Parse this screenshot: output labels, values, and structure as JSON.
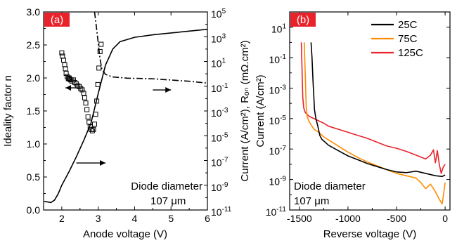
{
  "chart_data": [
    {
      "type": "line",
      "panel_tag": "(a)",
      "xlabel": "Anode voltage (V)",
      "ylabel_left": "Ideality factor n",
      "ylabel_right": "Current (A/cm²), Rₒₙ (mΩ.cm²)",
      "xlim": [
        1.5,
        6
      ],
      "ylim_left": [
        0,
        3
      ],
      "ylim_right_log10": [
        -11,
        5
      ],
      "right_axis_scale": "log",
      "x_ticks": [
        "2",
        "3",
        "4",
        "5",
        "6"
      ],
      "y_left_ticks": [
        "0.0",
        "0.5",
        "1.0",
        "1.5",
        "2.0",
        "2.5",
        "3.0"
      ],
      "y_right_ticks": [
        {
          "base": "10",
          "exp": "5"
        },
        {
          "base": "10",
          "exp": "3"
        },
        {
          "base": "10",
          "exp": "1"
        },
        {
          "base": "10",
          "exp": "-1"
        },
        {
          "base": "10",
          "exp": "-3"
        },
        {
          "base": "10",
          "exp": "-5"
        },
        {
          "base": "10",
          "exp": "-7"
        },
        {
          "base": "10",
          "exp": "-9"
        },
        {
          "base": "10",
          "exp": "-11"
        }
      ],
      "annotation_lines": [
        "Diode diameter",
        "107 μm"
      ],
      "series": [
        {
          "role": "ideality factor n (left axis)",
          "style": "open-square-markers",
          "points": [
            [
              2.0,
              2.38
            ],
            [
              2.02,
              2.33
            ],
            [
              2.05,
              2.27
            ],
            [
              2.08,
              2.2
            ],
            [
              2.1,
              2.14
            ],
            [
              2.12,
              2.07
            ],
            [
              2.15,
              2.02
            ],
            [
              2.18,
              1.99
            ],
            [
              2.2,
              2.0
            ],
            [
              2.22,
              1.98
            ],
            [
              2.25,
              1.97
            ],
            [
              2.28,
              1.95
            ],
            [
              2.32,
              1.97
            ],
            [
              2.36,
              1.93
            ],
            [
              2.4,
              1.91
            ],
            [
              2.44,
              1.88
            ],
            [
              2.48,
              1.87
            ],
            [
              2.52,
              1.84
            ],
            [
              2.56,
              1.82
            ],
            [
              2.6,
              1.77
            ],
            [
              2.63,
              1.7
            ],
            [
              2.66,
              1.62
            ],
            [
              2.69,
              1.52
            ],
            [
              2.72,
              1.41
            ],
            [
              2.75,
              1.33
            ],
            [
              2.78,
              1.26
            ],
            [
              2.81,
              1.22
            ],
            [
              2.84,
              1.2
            ],
            [
              2.87,
              1.22
            ],
            [
              2.9,
              1.3
            ],
            [
              2.93,
              1.45
            ],
            [
              2.96,
              1.65
            ],
            [
              2.99,
              1.9
            ],
            [
              3.02,
              2.15
            ],
            [
              3.05,
              2.4
            ],
            [
              3.08,
              2.51
            ]
          ]
        },
        {
          "role": "current density (right axis, log)",
          "style": "solid-line",
          "points": [
            [
              1.52,
              -10.3
            ],
            [
              1.7,
              -10.4
            ],
            [
              1.8,
              -10.2
            ],
            [
              1.9,
              -9.7
            ],
            [
              2.0,
              -9.0
            ],
            [
              2.2,
              -7.9
            ],
            [
              2.4,
              -6.7
            ],
            [
              2.6,
              -5.4
            ],
            [
              2.8,
              -4.0
            ],
            [
              3.0,
              -1.6
            ],
            [
              3.2,
              0.7
            ],
            [
              3.4,
              2.0
            ],
            [
              3.6,
              2.6
            ],
            [
              4.0,
              2.95
            ],
            [
              4.5,
              3.15
            ],
            [
              5.0,
              3.3
            ],
            [
              5.5,
              3.45
            ],
            [
              6.0,
              3.6
            ]
          ]
        },
        {
          "role": "R_on (right axis, log)",
          "style": "dash-dot-line",
          "points": [
            [
              2.9,
              5.0
            ],
            [
              2.95,
              3.8
            ],
            [
              3.0,
              2.5
            ],
            [
              3.05,
              1.2
            ],
            [
              3.1,
              0.4
            ],
            [
              3.2,
              -0.05
            ],
            [
              3.4,
              -0.25
            ],
            [
              3.8,
              -0.35
            ],
            [
              4.5,
              -0.4
            ],
            [
              5.0,
              -0.5
            ],
            [
              5.5,
              -0.6
            ],
            [
              6.0,
              -0.75
            ]
          ]
        }
      ],
      "arrows": [
        {
          "from": [
            2.5,
            1.85
          ],
          "to": [
            2.1,
            1.85
          ],
          "meaning": "squares read on left axis"
        },
        {
          "from": [
            4.5,
            -1.3
          ],
          "to": [
            5.0,
            -1.3
          ],
          "meaning": "dash-dot read on right axis"
        },
        {
          "from": [
            2.4,
            -7.2
          ],
          "to": [
            3.2,
            -7.2
          ],
          "meaning": "solid line read on right axis"
        }
      ]
    },
    {
      "type": "line",
      "panel_tag": "(b)",
      "xlabel": "Reverse voltage (V)",
      "ylabel": "Current (A/cm²)",
      "xlim": [
        -1600,
        50
      ],
      "x_reversed": false,
      "ylim_log10": [
        -11,
        2
      ],
      "y_scale": "log",
      "x_ticks": [
        "-1500",
        "-1000",
        "-500",
        "0"
      ],
      "y_ticks": [
        {
          "base": "10",
          "exp": "1"
        },
        {
          "base": "10",
          "exp": "-1"
        },
        {
          "base": "10",
          "exp": "-3"
        },
        {
          "base": "10",
          "exp": "-5"
        },
        {
          "base": "10",
          "exp": "-7"
        },
        {
          "base": "10",
          "exp": "-9"
        },
        {
          "base": "10",
          "exp": "-11"
        }
      ],
      "annotation_lines": [
        "Diode diameter",
        "107 μm"
      ],
      "legend_position": "top-right",
      "series": [
        {
          "name": "25C",
          "color": "#000000",
          "points": [
            [
              -1380,
              0.0
            ],
            [
              -1370,
              -1.0
            ],
            [
              -1360,
              -2.5
            ],
            [
              -1350,
              -3.7
            ],
            [
              -1345,
              -4.4
            ],
            [
              -1330,
              -5.0
            ],
            [
              -1310,
              -5.5
            ],
            [
              -1290,
              -6.1
            ],
            [
              -1270,
              -6.35
            ],
            [
              -1200,
              -6.75
            ],
            [
              -1100,
              -7.1
            ],
            [
              -1000,
              -7.45
            ],
            [
              -900,
              -7.7
            ],
            [
              -800,
              -7.95
            ],
            [
              -700,
              -8.15
            ],
            [
              -600,
              -8.35
            ],
            [
              -500,
              -8.5
            ],
            [
              -400,
              -8.55
            ],
            [
              -300,
              -8.45
            ],
            [
              -200,
              -8.6
            ],
            [
              -100,
              -8.75
            ],
            [
              -30,
              -8.8
            ],
            [
              0,
              -8.7
            ]
          ]
        },
        {
          "name": "75C",
          "color": "#ff8c00",
          "points": [
            [
              -1450,
              0.0
            ],
            [
              -1445,
              -1.0
            ],
            [
              -1440,
              -2.0
            ],
            [
              -1435,
              -3.0
            ],
            [
              -1430,
              -4.2
            ],
            [
              -1420,
              -4.85
            ],
            [
              -1400,
              -5.2
            ],
            [
              -1380,
              -5.4
            ],
            [
              -1350,
              -5.7
            ],
            [
              -1300,
              -5.9
            ],
            [
              -1250,
              -6.2
            ],
            [
              -1200,
              -6.4
            ],
            [
              -1100,
              -6.8
            ],
            [
              -1000,
              -7.2
            ],
            [
              -900,
              -7.55
            ],
            [
              -800,
              -7.85
            ],
            [
              -700,
              -8.1
            ],
            [
              -600,
              -8.35
            ],
            [
              -500,
              -8.6
            ],
            [
              -400,
              -8.75
            ],
            [
              -300,
              -8.9
            ],
            [
              -250,
              -9.2
            ],
            [
              -200,
              -9.6
            ],
            [
              -150,
              -9.3
            ],
            [
              -100,
              -9.8
            ],
            [
              -60,
              -10.3
            ],
            [
              -30,
              -10.6
            ],
            [
              -10,
              -9.7
            ],
            [
              0,
              -9.2
            ]
          ]
        },
        {
          "name": "125C",
          "color": "#e8232b",
          "points": [
            [
              -1480,
              0.0
            ],
            [
              -1475,
              -1.2
            ],
            [
              -1470,
              -2.5
            ],
            [
              -1465,
              -3.6
            ],
            [
              -1455,
              -4.3
            ],
            [
              -1440,
              -4.6
            ],
            [
              -1400,
              -4.85
            ],
            [
              -1350,
              -5.0
            ],
            [
              -1300,
              -5.15
            ],
            [
              -1250,
              -5.3
            ],
            [
              -1200,
              -5.5
            ],
            [
              -1100,
              -5.7
            ],
            [
              -1000,
              -5.9
            ],
            [
              -900,
              -6.1
            ],
            [
              -800,
              -6.3
            ],
            [
              -700,
              -6.55
            ],
            [
              -600,
              -6.8
            ],
            [
              -500,
              -6.95
            ],
            [
              -400,
              -7.15
            ],
            [
              -300,
              -7.4
            ],
            [
              -200,
              -7.65
            ],
            [
              -150,
              -7.4
            ],
            [
              -120,
              -7.05
            ],
            [
              -100,
              -7.9
            ],
            [
              -80,
              -7.1
            ],
            [
              -60,
              -8.0
            ],
            [
              -40,
              -8.6
            ],
            [
              -20,
              -8.2
            ],
            [
              0,
              -8.0
            ]
          ]
        }
      ]
    }
  ]
}
